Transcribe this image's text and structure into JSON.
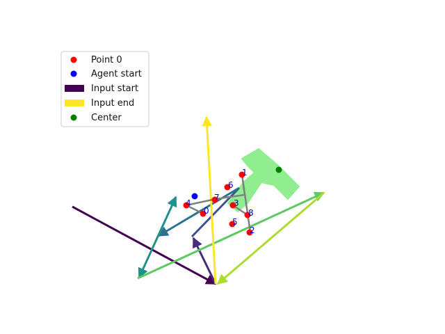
{
  "legend": {
    "entries": [
      {
        "label": "Point 0",
        "marker": "dot",
        "color": "#ff0000"
      },
      {
        "label": "Agent start",
        "marker": "dot",
        "color": "#0000ff"
      },
      {
        "label": "Input start",
        "marker": "bar",
        "color": "#440154"
      },
      {
        "label": "Input end",
        "marker": "bar",
        "color": "#fde725"
      },
      {
        "label": "Center",
        "marker": "dot",
        "color": "#008000"
      }
    ]
  },
  "points": [
    {
      "label": "0"
    },
    {
      "label": "1"
    },
    {
      "label": "2"
    },
    {
      "label": "3"
    },
    {
      "label": "4"
    },
    {
      "label": "5"
    },
    {
      "label": "6"
    },
    {
      "label": "7"
    },
    {
      "label": "8"
    }
  ],
  "colors": {
    "point": "#ff0000",
    "agent": "#0000ff",
    "center": "#008000",
    "shape": "#90ee90",
    "path": "#808080",
    "label": "#0000cc",
    "arrows": [
      "#440154",
      "#472d7b",
      "#3b528b",
      "#2c728e",
      "#21918c",
      "#28ae80",
      "#5ec962",
      "#addc30",
      "#fde725"
    ]
  }
}
